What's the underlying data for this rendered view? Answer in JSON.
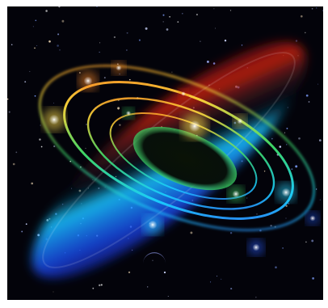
{
  "artwork": {
    "subject": "cosmic-orbit-illustration",
    "background_color": "#03030a",
    "colors": {
      "red": "#e0301a",
      "orange": "#ff8a2a",
      "yellow": "#ffe04a",
      "green": "#3fe06a",
      "cyan": "#2ad6ff",
      "blue": "#2a5cff",
      "violet": "#5a2aff"
    }
  }
}
